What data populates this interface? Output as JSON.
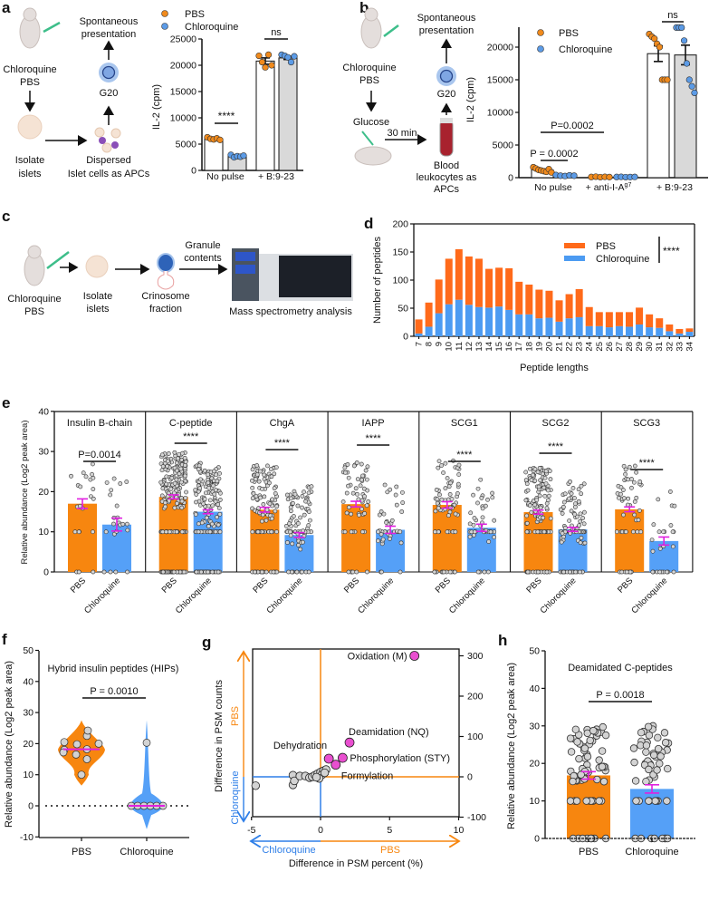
{
  "panel_labels": [
    "a",
    "b",
    "c",
    "d",
    "e",
    "f",
    "g",
    "h"
  ],
  "colors": {
    "pbs": "#F7860F",
    "chloroquine": "#55A0F7",
    "pbs_d": "#FF6A1A",
    "chloroquine_d": "#4C9BF2",
    "error": "#E020E0",
    "highlight": "#E94FD0",
    "dot": "#D3D3D3",
    "bar_white": "#FFFFFF",
    "bar_gray": "#D9D9D9"
  },
  "diagrams": {
    "a": {
      "treatment": [
        "Chloroquine",
        "PBS"
      ],
      "isolate": [
        "Isolate",
        "islets"
      ],
      "dispersed": [
        "Dispersed",
        "Islet cells as APCs"
      ],
      "cell": "G20",
      "readout": [
        "Spontaneous",
        "presentation"
      ],
      "icons": [
        "mouse-syringe-icon",
        "islet-icon",
        "dispersed-cells-icon",
        "t-cell-icon"
      ]
    },
    "b": {
      "treatment": [
        "Chloroquine",
        "PBS"
      ],
      "glucose": "Glucose",
      "time": "30 min",
      "readout": [
        "Spontaneous",
        "presentation"
      ],
      "cell": "G20",
      "blood": [
        "Blood",
        "leukocytes as",
        "APCs"
      ],
      "icons": [
        "mouse-syringe-icon",
        "blood-tube-icon",
        "t-cell-icon"
      ]
    },
    "c": {
      "treatment": [
        "Chloroquine",
        "PBS"
      ],
      "isolate": [
        "Isolate",
        "islets"
      ],
      "crinosome": [
        "Crinosome",
        "fraction"
      ],
      "granule": [
        "Granule",
        "contents"
      ],
      "ms": "Mass spectrometry analysis",
      "icons": [
        "mouse-syringe-icon",
        "islet-icon",
        "crinosome-icon",
        "mass-spectrometer-icon"
      ]
    }
  },
  "chart_data": [
    {
      "panel": "a",
      "type": "bar",
      "ylabel": "IL-2 (cpm)",
      "ylim": [
        0,
        25000
      ],
      "yticks": [
        "0",
        "5000",
        "10000",
        "15000",
        "20000",
        "25000"
      ],
      "categories": [
        "No pulse",
        "+ B:9-23"
      ],
      "legend": [
        "PBS",
        "Chloroquine"
      ],
      "legend_position": "top-left",
      "series": [
        {
          "name": "PBS",
          "values": [
            6000,
            20800
          ],
          "sem": [
            120,
            600
          ],
          "points": [
            [
              6300,
              6000,
              5900,
              6100,
              5800
            ],
            [
              21800,
              20600,
              19600,
              22000,
              20000
            ]
          ]
        },
        {
          "name": "Chloroquine",
          "values": [
            2700,
            21400
          ],
          "sem": [
            90,
            300
          ],
          "points": [
            [
              2950,
              2500,
              2700,
              2600,
              2800
            ],
            [
              22000,
              21800,
              21500,
              20600,
              21700
            ]
          ]
        }
      ],
      "annotations": [
        "****",
        "ns"
      ]
    },
    {
      "panel": "b",
      "type": "bar",
      "ylabel": "IL-2 (cpm)",
      "ylim": [
        0,
        25000
      ],
      "yticks": [
        "0",
        "5000",
        "10000",
        "15000",
        "20000"
      ],
      "categories": [
        "No pulse",
        "+ anti-I-A",
        "+ B:9-23"
      ],
      "category_superscript": "g7",
      "legend": [
        "PBS",
        "Chloroquine"
      ],
      "legend_position": "top-left",
      "series": [
        {
          "name": "PBS",
          "values": [
            1200,
            100,
            19000
          ],
          "sem": [
            120,
            20,
            1200
          ],
          "points": [
            [
              1600,
              1400,
              1200,
              1100,
              1000,
              900,
              1300,
              800
            ],
            [
              100,
              150,
              80,
              120,
              90
            ],
            [
              22000,
              21600,
              21300,
              20500,
              20000,
              15000,
              15000,
              15000
            ]
          ]
        },
        {
          "name": "Chloroquine",
          "values": [
            300,
            100,
            18800
          ],
          "sem": [
            40,
            20,
            1500
          ],
          "points": [
            [
              400,
              300,
              250,
              350,
              300
            ],
            [
              100,
              120,
              80,
              90,
              110
            ],
            [
              23000,
              23000,
              23000,
              21000,
              17500,
              15000,
              14000,
              13000
            ]
          ]
        }
      ],
      "annotations": [
        "ns",
        "P=0.0002",
        "P = 0.0002"
      ]
    },
    {
      "panel": "d",
      "type": "bar",
      "stacked": true,
      "ylabel": "Number of peptides",
      "xlabel": "Peptide lengths",
      "ylim": [
        0,
        200
      ],
      "yticks": [
        "0",
        "50",
        "100",
        "150",
        "200"
      ],
      "categories": [
        "7",
        "8",
        "9",
        "10",
        "11",
        "12",
        "13",
        "14",
        "15",
        "16",
        "17",
        "18",
        "19",
        "20",
        "21",
        "22",
        "23",
        "24",
        "25",
        "26",
        "27",
        "28",
        "29",
        "30",
        "31",
        "32",
        "33",
        "34"
      ],
      "series": [
        {
          "name": "Chloroquine",
          "values": [
            5,
            17,
            41,
            57,
            65,
            56,
            52,
            51,
            53,
            47,
            39,
            39,
            32,
            33,
            26,
            32,
            34,
            18,
            18,
            16,
            18,
            17,
            21,
            16,
            15,
            9,
            5,
            8
          ]
        },
        {
          "name": "PBS",
          "values": [
            25,
            43,
            60,
            81,
            90,
            86,
            86,
            69,
            69,
            74,
            58,
            53,
            51,
            48,
            38,
            43,
            50,
            34,
            25,
            27,
            25,
            26,
            30,
            23,
            17,
            12,
            8,
            6
          ]
        }
      ],
      "legend": [
        "PBS",
        "Chloroquine"
      ],
      "legend_position": "top-right",
      "annotation": "****"
    },
    {
      "panel": "e",
      "type": "bar",
      "ylabel": "Relative abundance (Log2 peak area)",
      "ylim": [
        0,
        40
      ],
      "yticks": [
        "0",
        "10",
        "20",
        "30",
        "40"
      ],
      "groups": [
        {
          "title": "Insulin B-chain",
          "categories": [
            "PBS",
            "Chloroquine"
          ],
          "values": [
            17.0,
            11.8
          ],
          "sem": [
            1.2,
            1.6
          ],
          "annotation": "P=0.0014"
        },
        {
          "title": "C-peptide",
          "categories": [
            "PBS",
            "Chloroquine"
          ],
          "values": [
            18.7,
            15.0
          ],
          "sem": [
            0.5,
            0.5
          ],
          "annotation": "****"
        },
        {
          "title": "ChgA",
          "categories": [
            "PBS",
            "Chloroquine"
          ],
          "values": [
            15.5,
            9.2
          ],
          "sem": [
            0.6,
            0.6
          ],
          "annotation": "****"
        },
        {
          "title": "IAPP",
          "categories": [
            "PBS",
            "Chloroquine"
          ],
          "values": [
            16.9,
            10.5
          ],
          "sem": [
            0.7,
            0.9
          ],
          "annotation": "****"
        },
        {
          "title": "SCG1",
          "categories": [
            "PBS",
            "Chloroquine"
          ],
          "values": [
            16.7,
            11.0
          ],
          "sem": [
            0.8,
            0.9
          ],
          "annotation": "****"
        },
        {
          "title": "SCG2",
          "categories": [
            "PBS",
            "Chloroquine"
          ],
          "values": [
            14.9,
            10.6
          ],
          "sem": [
            0.5,
            0.5
          ],
          "annotation": "****"
        },
        {
          "title": "SCG3",
          "categories": [
            "PBS",
            "Chloroquine"
          ],
          "values": [
            15.6,
            7.7
          ],
          "sem": [
            0.6,
            1.0
          ],
          "annotation": "****"
        }
      ]
    },
    {
      "panel": "f",
      "type": "scatter",
      "subtype": "violin",
      "title": "Hybrid insulin peptides (HIPs)",
      "ylabel": "Relative abundance (Log2 peak area)",
      "ylim": [
        -10,
        50
      ],
      "yticks": [
        "-10",
        "0",
        "10",
        "20",
        "30",
        "40",
        "50"
      ],
      "categories": [
        "PBS",
        "Chloroquine"
      ],
      "points": [
        [
          20.5,
          19.8,
          22.5,
          24.2,
          18.0,
          16.5,
          18.2,
          15.0,
          17.2,
          10.0,
          20.0
        ],
        [
          20.3,
          0,
          0,
          0,
          0,
          0,
          0
        ]
      ],
      "medians": [
        18.2,
        0
      ],
      "annotation": "P = 0.0010"
    },
    {
      "panel": "g",
      "type": "scatter",
      "xlabel": "Difference in PSM percent (%)",
      "ylabel": "Difference in PSM counts",
      "xlim": [
        -5,
        10
      ],
      "ylim": [
        -100,
        320
      ],
      "xticks": [
        "-5",
        "0",
        "5",
        "10"
      ],
      "yticks": [
        "-100",
        "0",
        "100",
        "200",
        "300"
      ],
      "axis_direction_labels": {
        "x_negative": "Chloroquine",
        "x_positive": "PBS",
        "y_negative": "Chloroquine",
        "y_positive": "PBS"
      },
      "highlighted": [
        {
          "label": "Oxidation (M)",
          "x": 6.8,
          "y": 300
        },
        {
          "label": "Deamidation (NQ)",
          "x": 2.1,
          "y": 85
        },
        {
          "label": "Phosphorylation (STY)",
          "x": 1.6,
          "y": 47
        },
        {
          "label": "Formylation",
          "x": 1.1,
          "y": 30
        },
        {
          "label": "Dehydration",
          "x": 0.6,
          "y": 45
        }
      ],
      "other_points": [
        [
          -4.7,
          -22
        ],
        [
          -2.0,
          -20
        ],
        [
          -2.0,
          4
        ],
        [
          -1.9,
          -10
        ],
        [
          -1.5,
          2
        ],
        [
          -1.1,
          2
        ],
        [
          -0.8,
          -2
        ],
        [
          -0.6,
          0
        ],
        [
          -0.4,
          4
        ],
        [
          -0.2,
          8
        ],
        [
          0.0,
          12
        ],
        [
          0.2,
          15
        ],
        [
          0.4,
          18
        ],
        [
          0.1,
          5
        ],
        [
          -0.1,
          -4
        ],
        [
          0.3,
          10
        ],
        [
          -0.3,
          -1
        ]
      ]
    },
    {
      "panel": "h",
      "type": "bar",
      "title": "Deamidated C-peptides",
      "ylabel": "Relative abundance (Log2 peak area)",
      "ylim": [
        0,
        50
      ],
      "yticks": [
        "0",
        "10",
        "20",
        "30",
        "40",
        "50"
      ],
      "categories": [
        "PBS",
        "Chloroquine"
      ],
      "values": [
        16.8,
        13.2
      ],
      "sem": [
        1.0,
        1.1
      ],
      "annotation": "P = 0.0018"
    }
  ]
}
